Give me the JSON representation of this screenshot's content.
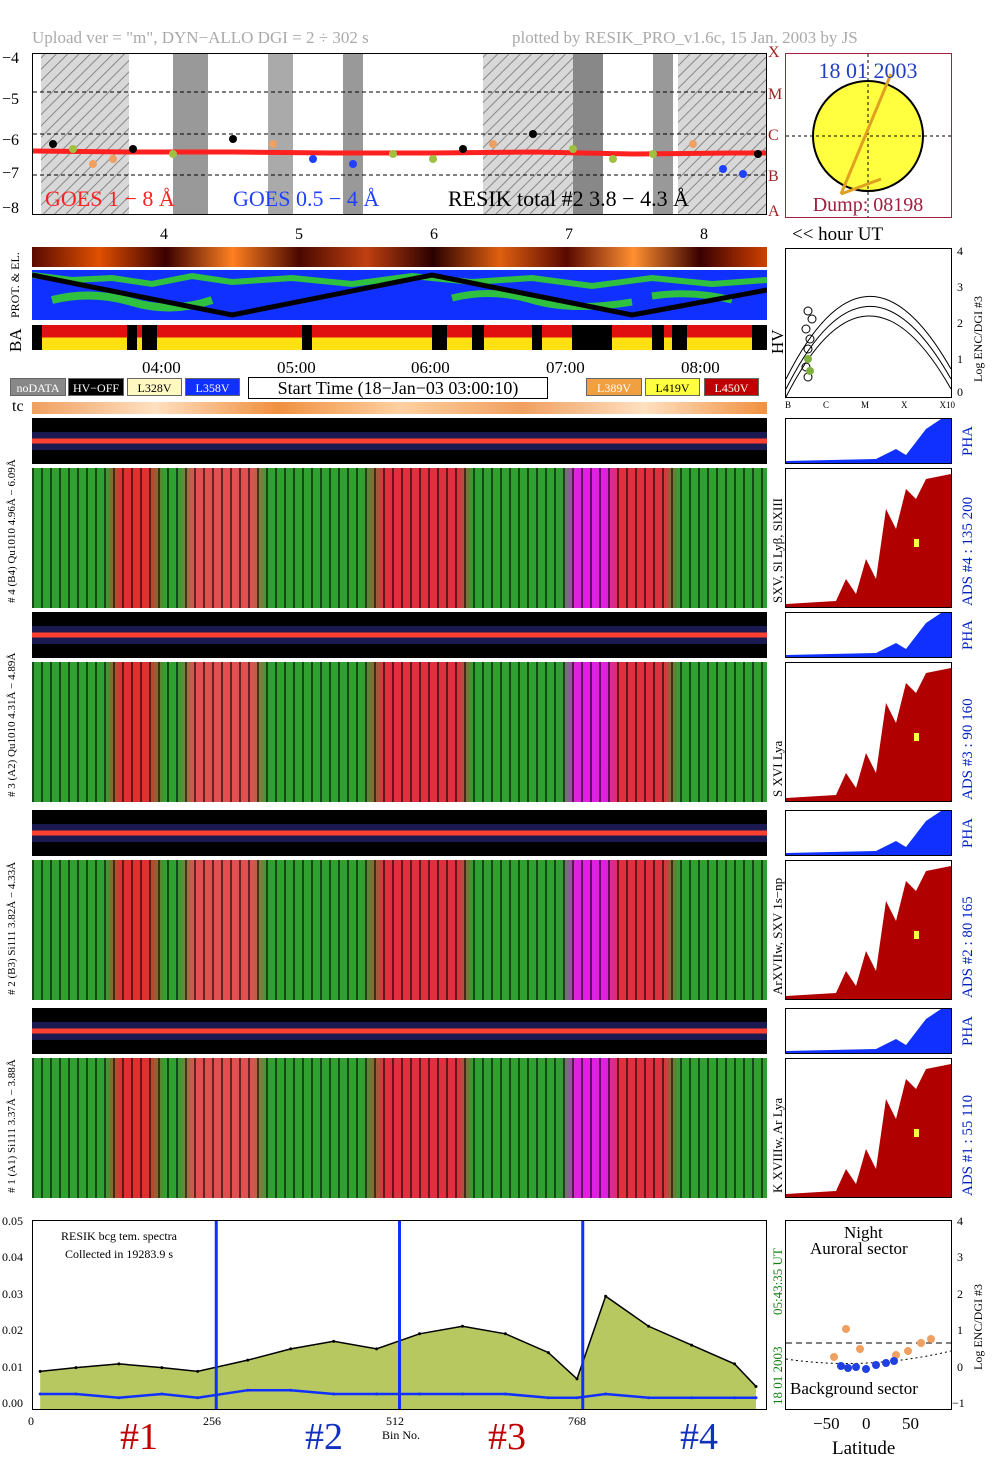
{
  "header": {
    "left": "Upload ver = \"m\", DYN−ALLO DGI =   2 ÷ 302 s",
    "right": "plotted by RESIK_PRO_v1.6c, 15 Jan. 2003 by JS"
  },
  "goes_panel": {
    "y_ticks": [
      "−4",
      "−5",
      "−6",
      "−7",
      "−8"
    ],
    "right_classes": [
      "X",
      "M",
      "C",
      "B",
      "A"
    ],
    "legend_goes1": "GOES 1 − 8 Å",
    "legend_goes05": "GOES 0.5 − 4 Å",
    "legend_resik": "RESIK total #2  3.8 − 4.3 Å",
    "hour_ticks": [
      "4",
      "5",
      "6",
      "7",
      "8"
    ],
    "hour_label": "<< hour UT",
    "colors": {
      "goes1": "#ff2020",
      "goes05": "#2040ff",
      "resik_a": "#000000",
      "resik_b": "#a0c040",
      "orange": "#f0a060"
    }
  },
  "sun_panel": {
    "date": "18 01 2003",
    "dump": "Dump: 08198"
  },
  "orbit_panel": {
    "label_top": "PROT. & EL.",
    "label_ba": "BA",
    "label_hv": "HV",
    "time_ticks": [
      "04:00",
      "05:00",
      "06:00",
      "07:00",
      "08:00"
    ]
  },
  "enc_panel": {
    "y_label": "Log ENC/DGI #3",
    "y_ticks": [
      "4",
      "3",
      "2",
      "1",
      "0"
    ],
    "x_ticks": [
      "B",
      "C",
      "M",
      "X",
      "X10"
    ]
  },
  "legend_bar": {
    "nodata": "noDATA",
    "hvoff": "HV−OFF",
    "l328": "L328V",
    "l358": "L358V",
    "start_time": "Start Time (18−Jan−03 03:00:10)",
    "l389": "L389V",
    "l419": "L419V",
    "l450": "L450V"
  },
  "tc_label": "tc",
  "channels": [
    {
      "left_label": "# 4 (B4) Qu1010  4.96Å − 6.09Å",
      "side_label": "SXV, Sl Lyβ, SlXIII",
      "ads": "ADS #4 :   135 200",
      "pha": "PHA"
    },
    {
      "left_label": "# 3 (A2) Qu1010  4.31Å − 4.89Å",
      "side_label": "S XVI Lya",
      "ads": "ADS #3 :   90 160",
      "pha": "PHA"
    },
    {
      "left_label": "# 2 (B3) Si111  3.82Å − 4.33Å",
      "side_label": "ArXVIIw, SXV 1s−np",
      "ads": "ADS #2 :   80 165",
      "pha": "PHA"
    },
    {
      "left_label": "# 1 (A1) Si111  3.37Å − 3.88Å",
      "side_label": "K XVIIIw, Ar Lya",
      "ads": "ADS #1 :   55 110",
      "pha": "PHA"
    }
  ],
  "spectrum_panel": {
    "note1": "RESIK bcg tem. spectra",
    "note2": "Collected in 19283.9 s",
    "right_date": "18 01 2003",
    "right_time": "05:43:35 UT",
    "y_ticks": [
      "0.05",
      "0.04",
      "0.03",
      "0.02",
      "0.01",
      "0.00"
    ],
    "x_ticks": [
      "0",
      "256",
      "512",
      "768"
    ],
    "x_label": "Bin No.",
    "channel_marks": [
      "#1",
      "#2",
      "#3",
      "#4"
    ]
  },
  "lat_panel": {
    "night": "Night",
    "auroral": "Auroral sector",
    "background": "Background sector",
    "x_label": "Latitude",
    "x_ticks": [
      "−50",
      "0",
      "50"
    ],
    "y_ticks": [
      "4",
      "3",
      "2",
      "1",
      "0",
      "−1"
    ],
    "y_label": "Log ENC/DGI #3"
  },
  "chart_data": {
    "type": "line",
    "title": "",
    "xlabel": "Bin No.",
    "ylabel": "",
    "xlim": [
      0,
      1024
    ],
    "ylim": [
      0,
      0.05
    ],
    "series": [
      {
        "name": "",
        "x": [
          10,
          60,
          120,
          180,
          230,
          300,
          360,
          420,
          480,
          540,
          600,
          660,
          720,
          760,
          800,
          860,
          920,
          980,
          1010
        ],
        "values": [
          0.01,
          0.011,
          0.012,
          0.011,
          0.01,
          0.013,
          0.016,
          0.018,
          0.016,
          0.02,
          0.022,
          0.02,
          0.015,
          0.008,
          0.03,
          0.022,
          0.017,
          0.012,
          0.006
        ]
      },
      {
        "name": "",
        "x": [
          10,
          60,
          120,
          180,
          230,
          300,
          360,
          420,
          480,
          540,
          600,
          660,
          720,
          760,
          800,
          860,
          920,
          980,
          1010
        ],
        "values": [
          0.004,
          0.004,
          0.003,
          0.004,
          0.003,
          0.005,
          0.005,
          0.004,
          0.004,
          0.004,
          0.004,
          0.004,
          0.003,
          0.003,
          0.004,
          0.003,
          0.003,
          0.003,
          0.003
        ]
      }
    ]
  }
}
